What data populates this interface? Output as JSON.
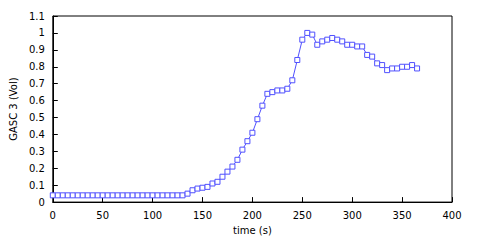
{
  "chart_data": {
    "type": "line",
    "x_label": "time (s)",
    "y_label": "GASC 3 (Vol)",
    "x": [
      0,
      5,
      10,
      15,
      20,
      25,
      30,
      35,
      40,
      45,
      50,
      55,
      60,
      65,
      70,
      75,
      80,
      85,
      90,
      95,
      100,
      105,
      110,
      115,
      120,
      125,
      130,
      135,
      140,
      145,
      150,
      155,
      160,
      165,
      170,
      175,
      180,
      185,
      190,
      195,
      200,
      205,
      210,
      215,
      220,
      225,
      230,
      235,
      240,
      245,
      250,
      255,
      260,
      265,
      270,
      275,
      280,
      285,
      290,
      295,
      300,
      305,
      310,
      315,
      320,
      325,
      330,
      335,
      340,
      345,
      350,
      355,
      360,
      365
    ],
    "values": [
      0.04,
      0.04,
      0.04,
      0.04,
      0.04,
      0.04,
      0.04,
      0.04,
      0.04,
      0.04,
      0.04,
      0.04,
      0.04,
      0.04,
      0.04,
      0.04,
      0.04,
      0.04,
      0.04,
      0.04,
      0.04,
      0.04,
      0.04,
      0.04,
      0.04,
      0.04,
      0.04,
      0.05,
      0.07,
      0.08,
      0.085,
      0.09,
      0.11,
      0.12,
      0.15,
      0.18,
      0.21,
      0.25,
      0.31,
      0.36,
      0.41,
      0.49,
      0.57,
      0.64,
      0.65,
      0.66,
      0.66,
      0.67,
      0.72,
      0.84,
      0.96,
      1.0,
      0.99,
      0.93,
      0.95,
      0.96,
      0.97,
      0.96,
      0.95,
      0.93,
      0.93,
      0.92,
      0.92,
      0.87,
      0.86,
      0.82,
      0.81,
      0.78,
      0.79,
      0.79,
      0.8,
      0.8,
      0.81,
      0.79
    ],
    "color": "#5050ff",
    "marker": "square",
    "line_style": "solid",
    "xlim": [
      0,
      400
    ],
    "xticks": [
      0,
      50,
      100,
      150,
      200,
      250,
      300,
      350,
      400
    ],
    "ylim": [
      0,
      1.1
    ],
    "yticks": [
      0,
      0.1,
      0.2,
      0.3,
      0.4,
      0.5,
      0.6,
      0.7,
      0.8,
      0.9,
      1,
      1.1
    ],
    "grid": false
  }
}
